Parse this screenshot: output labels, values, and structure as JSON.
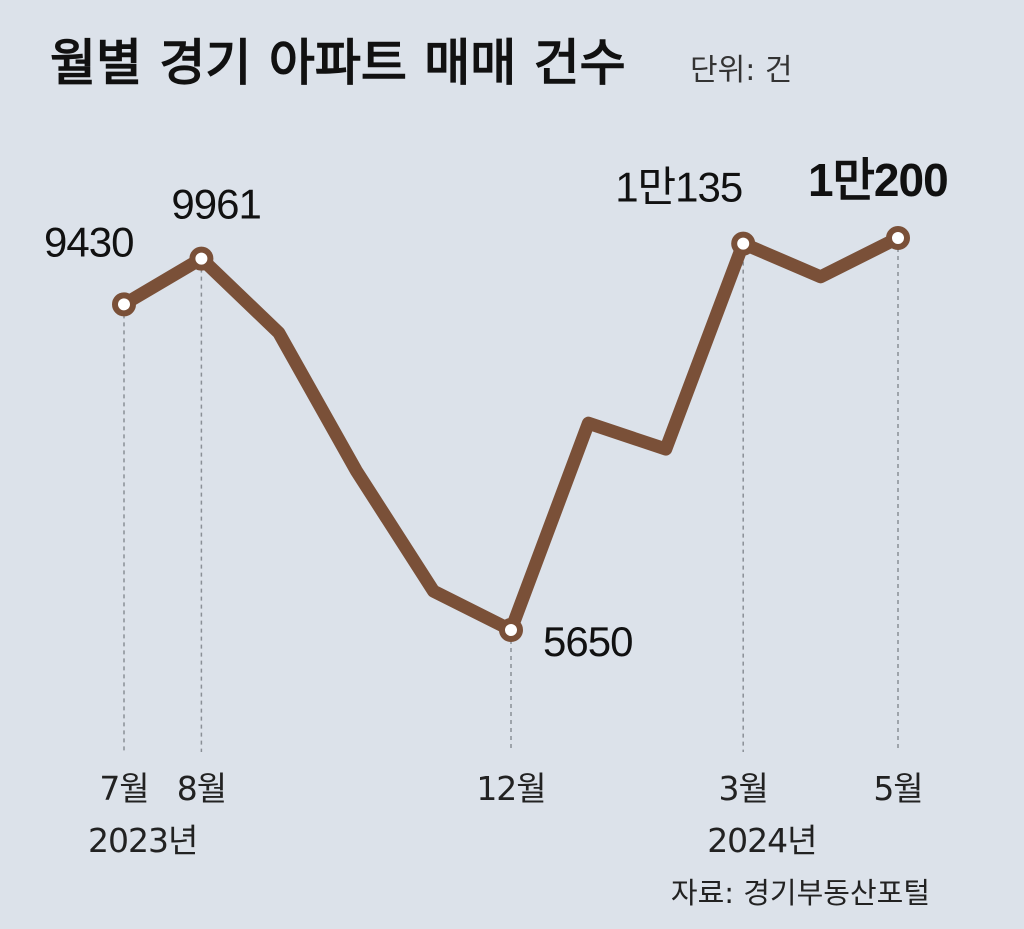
{
  "chart_data": {
    "type": "line",
    "title": "월별 경기 아파트 매매 건수",
    "unit_label": "단위: 건",
    "source": "자료: 경기부동산포털",
    "colors": {
      "background": "#dce2ea",
      "line": "#7a5038",
      "marker_fill": "#ffffff"
    },
    "x": [
      "2023-07",
      "2023-08",
      "2023-09",
      "2023-10",
      "2023-11",
      "2023-12",
      "2024-01",
      "2024-02",
      "2024-03",
      "2024-04",
      "2024-05"
    ],
    "values": [
      9430,
      9961,
      9100,
      7500,
      6100,
      5650,
      8050,
      7750,
      10135,
      9750,
      10200
    ],
    "ylim": [
      5000,
      11000
    ],
    "grid": false,
    "legend": "none",
    "highlighted_points": [
      {
        "index": 0,
        "label": "9430",
        "emphasis": false
      },
      {
        "index": 1,
        "label": "9961",
        "emphasis": false
      },
      {
        "index": 5,
        "label": "5650",
        "emphasis": false
      },
      {
        "index": 8,
        "label": "1만135",
        "emphasis": false
      },
      {
        "index": 10,
        "label": "1만200",
        "emphasis": true
      }
    ],
    "x_tick_labels": [
      {
        "index": 0,
        "month": "7월",
        "year": "2023년"
      },
      {
        "index": 1,
        "month": "8월",
        "year": ""
      },
      {
        "index": 5,
        "month": "12월",
        "year": ""
      },
      {
        "index": 8,
        "month": "3월",
        "year": "2024년"
      },
      {
        "index": 10,
        "month": "5월",
        "year": ""
      }
    ]
  }
}
